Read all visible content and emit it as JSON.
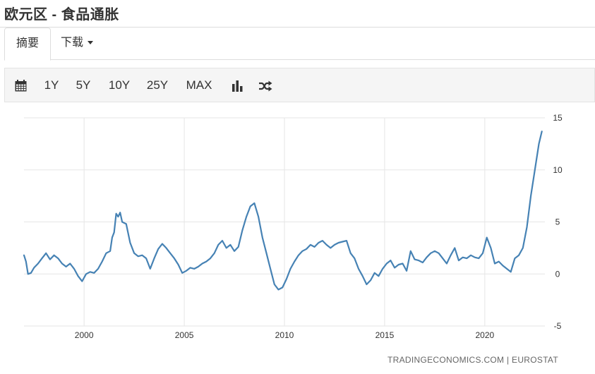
{
  "page": {
    "title": "欧元区 - 食品通胀"
  },
  "tabs": [
    {
      "label": "摘要",
      "active": true
    },
    {
      "label": "下载",
      "active": false
    }
  ],
  "toolbar": {
    "calendar_icon": "calendar-icon",
    "ranges": [
      "1Y",
      "5Y",
      "10Y",
      "25Y",
      "MAX"
    ],
    "chart_type_icon": "bar-chart-icon",
    "compare_icon": "shuffle-icon"
  },
  "attribution": "TRADINGECONOMICS.COM  |  EUROSTAT",
  "colors": {
    "line": "#4682b4",
    "grid": "#e6e6e6",
    "axis_text": "#333333"
  },
  "chart_data": {
    "type": "line",
    "title": "",
    "xlabel": "",
    "ylabel": "",
    "xlim": [
      1997.0,
      2023.0
    ],
    "ylim": [
      -5,
      15
    ],
    "x_ticks": [
      2000,
      2005,
      2010,
      2015,
      2020
    ],
    "x_tick_labels": [
      "2000",
      "2005",
      "2010",
      "2015",
      "2020"
    ],
    "y_ticks": [
      15,
      10,
      5,
      0,
      -5
    ],
    "y_tick_labels": [
      "15",
      "10",
      "5",
      "0",
      "-5"
    ],
    "y_axis_side": "right",
    "grid": true,
    "legend": "none",
    "series": [
      {
        "values_x": [
          1997.0,
          1997.1,
          1997.2,
          1997.35,
          1997.5,
          1997.7,
          1997.9,
          1998.1,
          1998.3,
          1998.5,
          1998.7,
          1998.9,
          1999.1,
          1999.3,
          1999.5,
          1999.7,
          1999.9,
          2000.1,
          2000.3,
          2000.5,
          2000.7,
          2000.9,
          2001.1,
          2001.3,
          2001.4,
          2001.5,
          2001.6,
          2001.7,
          2001.8,
          2001.9,
          2002.1,
          2002.3,
          2002.5,
          2002.7,
          2002.9,
          2003.1,
          2003.3,
          2003.5,
          2003.7,
          2003.9,
          2004.1,
          2004.3,
          2004.5,
          2004.7,
          2004.9,
          2005.1,
          2005.3,
          2005.5,
          2005.7,
          2005.9,
          2006.1,
          2006.3,
          2006.5,
          2006.7,
          2006.9,
          2007.1,
          2007.3,
          2007.5,
          2007.7,
          2007.9,
          2008.1,
          2008.3,
          2008.5,
          2008.7,
          2008.9,
          2009.1,
          2009.3,
          2009.5,
          2009.7,
          2009.9,
          2010.1,
          2010.3,
          2010.5,
          2010.7,
          2010.9,
          2011.1,
          2011.3,
          2011.5,
          2011.7,
          2011.9,
          2012.1,
          2012.3,
          2012.5,
          2012.7,
          2012.9,
          2013.1,
          2013.3,
          2013.5,
          2013.7,
          2013.9,
          2014.1,
          2014.3,
          2014.5,
          2014.7,
          2014.9,
          2015.1,
          2015.3,
          2015.5,
          2015.7,
          2015.9,
          2016.1,
          2016.3,
          2016.5,
          2016.7,
          2016.9,
          2017.1,
          2017.3,
          2017.5,
          2017.7,
          2017.9,
          2018.1,
          2018.3,
          2018.5,
          2018.7,
          2018.9,
          2019.1,
          2019.3,
          2019.5,
          2019.7,
          2019.9,
          2020.1,
          2020.3,
          2020.5,
          2020.7,
          2020.9,
          2021.1,
          2021.3,
          2021.5,
          2021.7,
          2021.9,
          2022.1,
          2022.3,
          2022.5,
          2022.7,
          2022.85
        ],
        "values_y": [
          1.8,
          1.2,
          0.0,
          0.1,
          0.6,
          1.0,
          1.5,
          2.0,
          1.4,
          1.8,
          1.5,
          1.0,
          0.7,
          1.0,
          0.5,
          -0.2,
          -0.7,
          0.0,
          0.2,
          0.1,
          0.5,
          1.2,
          2.0,
          2.2,
          3.5,
          4.0,
          5.8,
          5.5,
          5.9,
          5.0,
          4.8,
          3.0,
          2.0,
          1.7,
          1.8,
          1.5,
          0.5,
          1.5,
          2.4,
          2.9,
          2.5,
          2.0,
          1.5,
          0.9,
          0.1,
          0.3,
          0.6,
          0.5,
          0.7,
          1.0,
          1.2,
          1.5,
          2.0,
          2.8,
          3.2,
          2.5,
          2.8,
          2.2,
          2.6,
          4.2,
          5.5,
          6.5,
          6.8,
          5.5,
          3.5,
          2.0,
          0.5,
          -1.0,
          -1.5,
          -1.3,
          -0.5,
          0.5,
          1.2,
          1.8,
          2.2,
          2.4,
          2.8,
          2.6,
          3.0,
          3.2,
          2.8,
          2.5,
          2.8,
          3.0,
          3.1,
          3.2,
          2.0,
          1.5,
          0.5,
          -0.2,
          -1.0,
          -0.6,
          0.1,
          -0.2,
          0.5,
          1.0,
          1.3,
          0.6,
          0.9,
          1.0,
          0.3,
          2.2,
          1.4,
          1.3,
          1.1,
          1.6,
          2.0,
          2.2,
          2.0,
          1.5,
          1.0,
          1.8,
          2.5,
          1.3,
          1.6,
          1.5,
          1.8,
          1.6,
          1.5,
          2.0,
          3.5,
          2.5,
          1.0,
          1.2,
          0.8,
          0.5,
          0.2,
          1.5,
          1.8,
          2.5,
          4.5,
          7.5,
          10.0,
          12.5,
          13.7
        ]
      }
    ]
  }
}
